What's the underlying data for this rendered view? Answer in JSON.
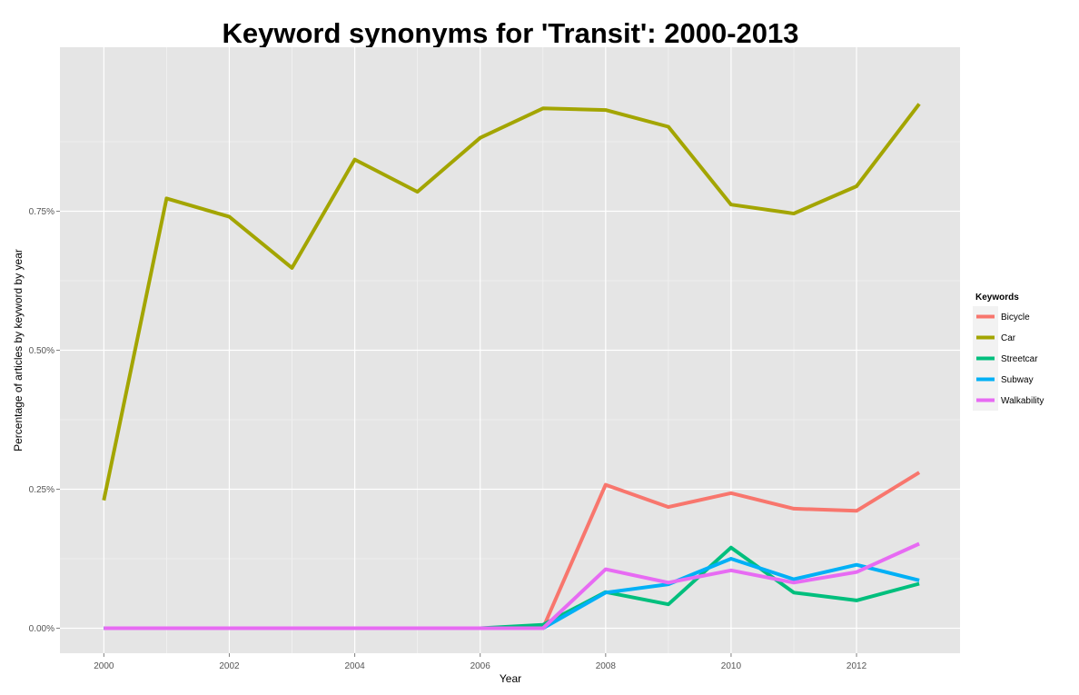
{
  "chart_data": {
    "type": "line",
    "title": "Keyword synonyms for 'Transit': 2000-2013",
    "xlabel": "Year",
    "ylabel": "Percentage of articles by keyword by year",
    "x": [
      2000,
      2001,
      2002,
      2003,
      2004,
      2005,
      2006,
      2007,
      2008,
      2009,
      2010,
      2011,
      2012,
      2013
    ],
    "xlim": [
      1999.3,
      2013.65
    ],
    "ylim": [
      -0.00045,
      0.01045
    ],
    "x_ticks": [
      2000,
      2002,
      2004,
      2006,
      2008,
      2010,
      2012
    ],
    "x_tick_labels": [
      "2000",
      "2002",
      "2004",
      "2006",
      "2008",
      "2010",
      "2012"
    ],
    "y_ticks": [
      0,
      0.0025,
      0.005,
      0.0075
    ],
    "y_tick_labels": [
      "0.00%",
      "0.25%",
      "0.50%",
      "0.75%"
    ],
    "grid": true,
    "legend": {
      "title": "Keywords",
      "position": "right"
    },
    "series": [
      {
        "name": "Bicycle",
        "color": "#F8766D",
        "values": [
          0,
          0,
          0,
          0,
          0,
          0,
          0,
          0,
          0.00258,
          0.00218,
          0.00243,
          0.00215,
          0.00211,
          0.0028
        ]
      },
      {
        "name": "Car",
        "color": "#A3A500",
        "values": [
          0.0023,
          0.00773,
          0.0074,
          0.00648,
          0.00843,
          0.00785,
          0.00882,
          0.00935,
          0.00932,
          0.00902,
          0.00762,
          0.00746,
          0.00795,
          0.00943
        ]
      },
      {
        "name": "Streetcar",
        "color": "#00BF7D",
        "values": [
          0,
          0,
          0,
          0,
          0,
          0,
          0,
          6e-05,
          0.00065,
          0.00043,
          0.00145,
          0.00064,
          0.0005,
          0.0008
        ]
      },
      {
        "name": "Subway",
        "color": "#00B0F6",
        "values": [
          0,
          0,
          0,
          0,
          0,
          0,
          0,
          0,
          0.00064,
          0.00079,
          0.00125,
          0.00088,
          0.00114,
          0.00086
        ]
      },
      {
        "name": "Walkability",
        "color": "#E76BF3",
        "values": [
          0,
          0,
          0,
          0,
          0,
          0,
          0,
          0,
          0.00106,
          0.00082,
          0.00104,
          0.00082,
          0.00101,
          0.00152
        ]
      }
    ]
  }
}
